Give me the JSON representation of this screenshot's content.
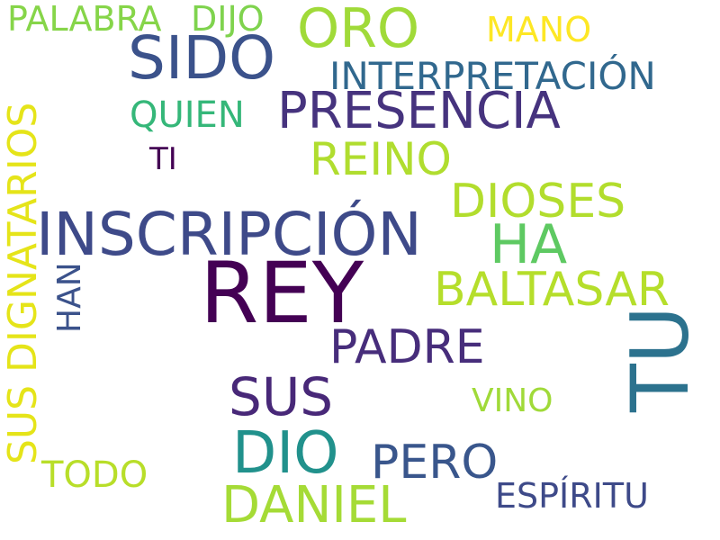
{
  "words": [
    {
      "text": "REY",
      "color": "#440154"
    },
    {
      "text": "INSCRIPCIÓN",
      "color": "#3e4a89"
    },
    {
      "text": "TU",
      "color": "#2c728e"
    },
    {
      "text": "SIDO",
      "color": "#3b528b"
    },
    {
      "text": "ORO",
      "color": "#a0da39"
    },
    {
      "text": "PRESENCIA",
      "color": "#46337e"
    },
    {
      "text": "DIO",
      "color": "#21918c"
    },
    {
      "text": "DANIEL",
      "color": "#a5db36"
    },
    {
      "text": "HA",
      "color": "#5ec962"
    },
    {
      "text": "BALTASAR",
      "color": "#b5de2b"
    },
    {
      "text": "PADRE",
      "color": "#472d7b"
    },
    {
      "text": "SUS",
      "color": "#482878"
    },
    {
      "text": "PERO",
      "color": "#39568c"
    },
    {
      "text": "REINO",
      "color": "#b0dd2f"
    },
    {
      "text": "DIOSES",
      "color": "#b2dd2d"
    },
    {
      "text": "SUS DIGNATARIOS",
      "color": "#e5e419"
    },
    {
      "text": "INTERPRETACIÓN",
      "color": "#31688e"
    },
    {
      "text": "PALABRA",
      "color": "#86d549"
    },
    {
      "text": "DIJO",
      "color": "#7fd34e"
    },
    {
      "text": "MANO",
      "color": "#fde725"
    },
    {
      "text": "QUIEN",
      "color": "#35b779"
    },
    {
      "text": "TI",
      "color": "#440154"
    },
    {
      "text": "HAN",
      "color": "#3b528b"
    },
    {
      "text": "VINO",
      "color": "#a0da39"
    },
    {
      "text": "TODO",
      "color": "#b8de29"
    },
    {
      "text": "ESPÍRITU",
      "color": "#3e4a89"
    }
  ]
}
